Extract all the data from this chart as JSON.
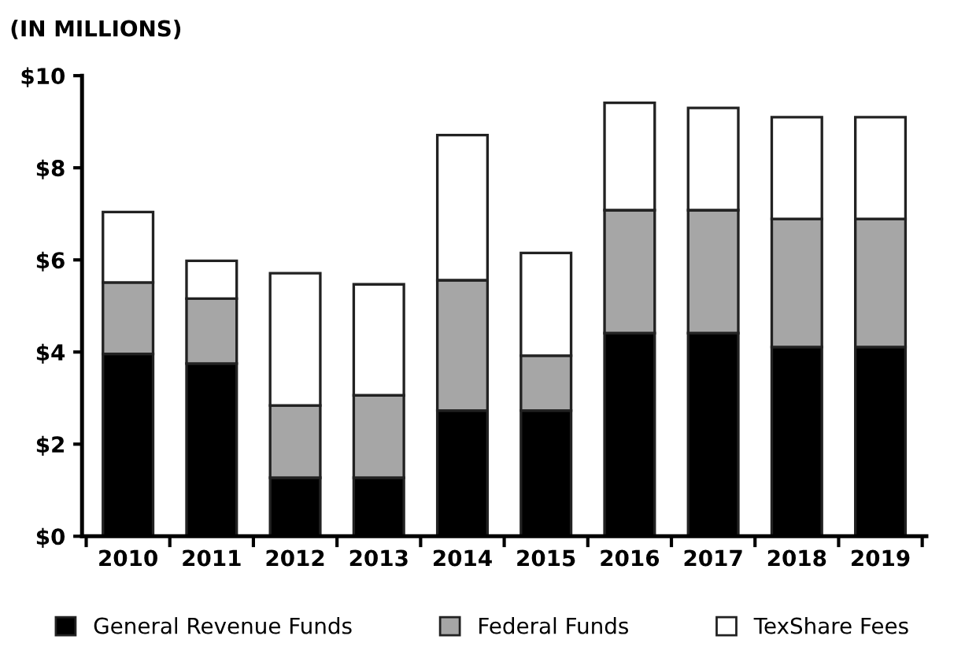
{
  "chart_data": {
    "type": "bar",
    "stacked": true,
    "title": "(IN MILLIONS)",
    "categories": [
      "2010",
      "2011",
      "2012",
      "2013",
      "2014",
      "2015",
      "2016",
      "2017",
      "2018",
      "2019"
    ],
    "series": [
      {
        "name": "General Revenue Funds",
        "color": "#000000",
        "values": [
          3.96,
          3.75,
          1.27,
          1.27,
          2.73,
          2.73,
          4.41,
          4.41,
          4.11,
          4.11
        ]
      },
      {
        "name": "Federal Funds",
        "color": "#a6a6a6",
        "values": [
          1.55,
          1.41,
          1.57,
          1.79,
          2.83,
          1.19,
          2.67,
          2.67,
          2.78,
          2.78
        ]
      },
      {
        "name": "TexShare Fees",
        "color": "#ffffff",
        "values": [
          1.53,
          0.82,
          2.87,
          2.41,
          3.15,
          2.23,
          2.33,
          2.22,
          2.21,
          2.21
        ]
      }
    ],
    "ylim": [
      0,
      10
    ],
    "yticks": [
      {
        "value": 0,
        "label": "$0"
      },
      {
        "value": 2,
        "label": "$2"
      },
      {
        "value": 4,
        "label": "$4"
      },
      {
        "value": 6,
        "label": "$6"
      },
      {
        "value": 8,
        "label": "$8"
      },
      {
        "value": 10,
        "label": "$10"
      }
    ],
    "grid": false,
    "legend": "bottom"
  }
}
